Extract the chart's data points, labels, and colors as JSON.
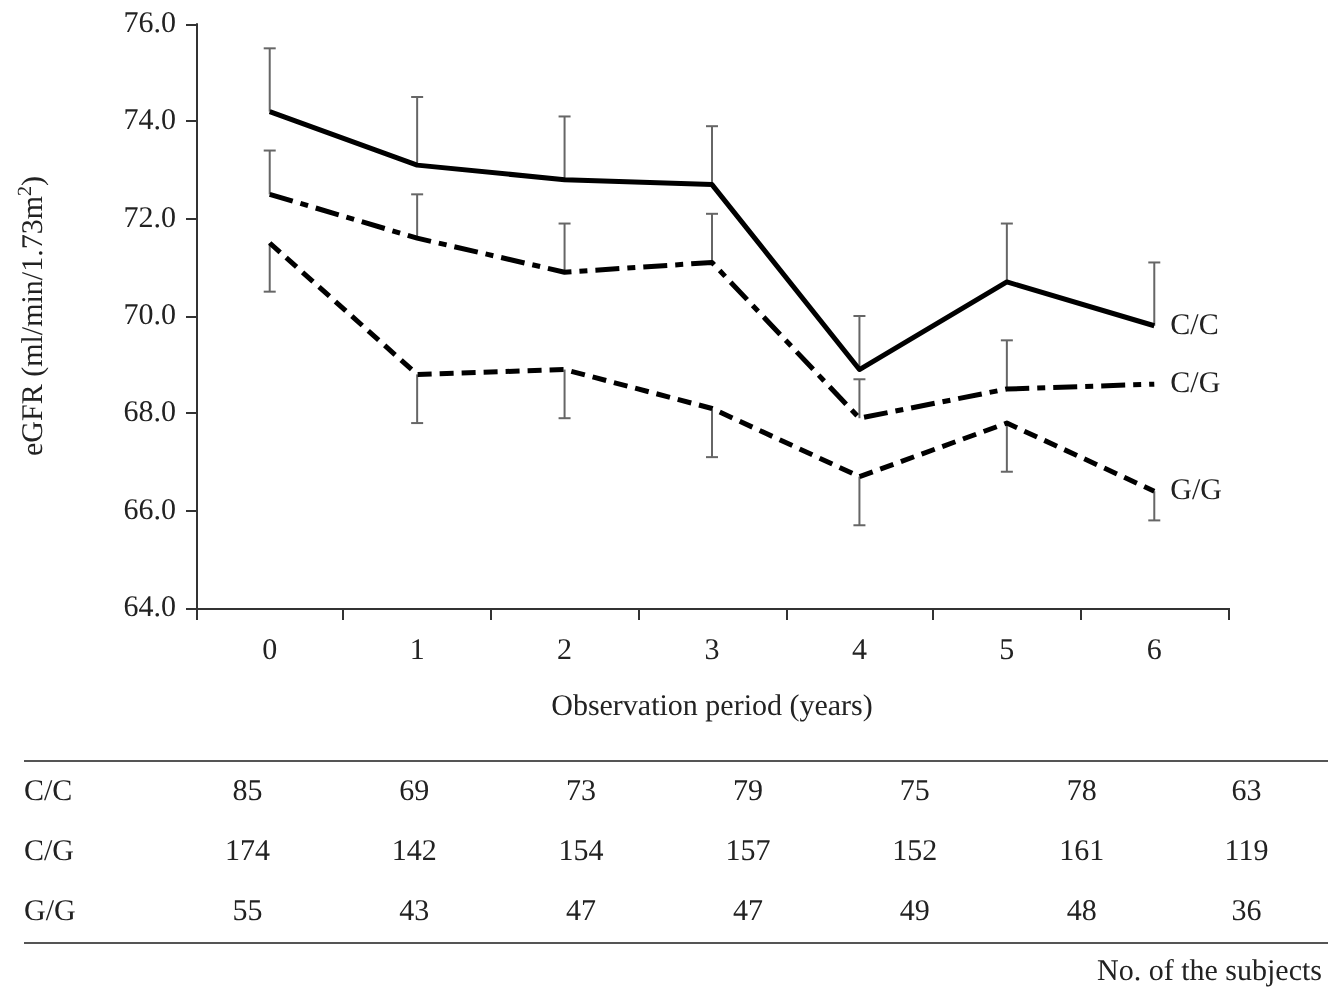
{
  "chart_data": {
    "type": "line",
    "xlabel": "Observation period (years)",
    "ylabel": "eGFR (ml/min/1.73m$^{2}$)",
    "categories": [
      "0",
      "1",
      "2",
      "3",
      "4",
      "5",
      "6"
    ],
    "ylim": [
      64,
      76
    ],
    "yticks": [
      {
        "value": 64,
        "label": "64.0"
      },
      {
        "value": 66,
        "label": "66.0"
      },
      {
        "value": 68,
        "label": "68.0"
      },
      {
        "value": 70,
        "label": "70.0"
      },
      {
        "value": 72,
        "label": "72.0"
      },
      {
        "value": 74,
        "label": "74.0"
      },
      {
        "value": 76,
        "label": "76.0"
      }
    ],
    "grid": false,
    "legend": false,
    "marker": "none",
    "series": [
      {
        "name": "C/C",
        "color": "#000000",
        "line_style": "solid",
        "values": [
          74.2,
          73.1,
          72.8,
          72.7,
          68.9,
          70.7,
          69.8
        ],
        "errors": [
          [
            74.2,
            75.5
          ],
          [
            73.1,
            74.5
          ],
          [
            72.8,
            74.1
          ],
          [
            72.7,
            73.9
          ],
          [
            68.9,
            70.0
          ],
          [
            70.7,
            71.9
          ],
          [
            69.8,
            71.1
          ]
        ]
      },
      {
        "name": "C/G",
        "color": "#000000",
        "line_style": "dashdot",
        "values": [
          72.5,
          71.6,
          70.9,
          71.1,
          67.9,
          68.5,
          68.6
        ],
        "errors": [
          [
            72.5,
            73.4
          ],
          [
            71.6,
            72.5
          ],
          [
            70.9,
            71.9
          ],
          [
            71.1,
            72.1
          ],
          [
            67.9,
            68.7
          ],
          [
            68.5,
            69.5
          ],
          null
        ]
      },
      {
        "name": "G/G",
        "color": "#000000",
        "line_style": "dashed",
        "values": [
          71.5,
          68.8,
          68.9,
          68.1,
          66.7,
          67.8,
          66.4
        ],
        "errors": [
          [
            70.5,
            71.5
          ],
          [
            67.8,
            68.8
          ],
          [
            67.9,
            68.9
          ],
          [
            67.1,
            68.1
          ],
          [
            65.7,
            66.7
          ],
          [
            66.8,
            67.8
          ],
          [
            65.8,
            66.4
          ]
        ]
      }
    ],
    "annotations": [
      "No. of the subjects",
      "C/C",
      "85",
      "69",
      "73",
      "79",
      "75",
      "78",
      "63",
      "C/G",
      "174",
      "142",
      "154",
      "157",
      "152",
      "161",
      "119",
      "G/G",
      "55",
      "43",
      "47",
      "47",
      "49",
      "48",
      "36"
    ]
  }
}
